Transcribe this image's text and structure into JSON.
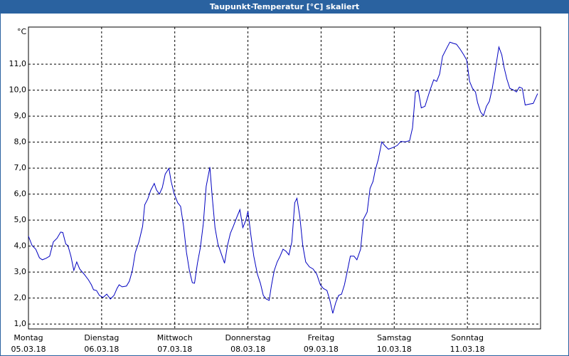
{
  "chart_data": {
    "type": "line",
    "title": "Taupunkt-Temperatur [°C] skaliert",
    "ylabel": "°C",
    "xlim": [
      0,
      7
    ],
    "ylim": [
      0.81,
      12.43
    ],
    "xticks": [
      {
        "value": 0,
        "label": "Montag"
      },
      {
        "value": 1,
        "label": "Dienstag"
      },
      {
        "value": 2,
        "label": "Mittwoch"
      },
      {
        "value": 3,
        "label": "Donnerstag"
      },
      {
        "value": 4,
        "label": "Freitag"
      },
      {
        "value": 5,
        "label": "Samstag"
      },
      {
        "value": 6,
        "label": "Sonntag"
      }
    ],
    "xtick_dates": [
      "05.03.18",
      "06.03.18",
      "07.03.18",
      "08.03.18",
      "09.03.18",
      "10.03.18",
      "11.03.18"
    ],
    "yticks": [
      {
        "value": 1,
        "label": "1,0"
      },
      {
        "value": 2,
        "label": "2,0"
      },
      {
        "value": 3,
        "label": "3,0"
      },
      {
        "value": 4,
        "label": "4,0"
      },
      {
        "value": 5,
        "label": "5,0"
      },
      {
        "value": 6,
        "label": "6,0"
      },
      {
        "value": 7,
        "label": "7,0"
      },
      {
        "value": 8,
        "label": "8,0"
      },
      {
        "value": 9,
        "label": "9,0"
      },
      {
        "value": 10,
        "label": "10,0"
      },
      {
        "value": 11,
        "label": "11,0"
      }
    ],
    "grid": true,
    "series": [
      {
        "color": "#0000c0",
        "x": [
          0.0,
          0.05,
          0.1,
          0.15,
          0.19,
          0.24,
          0.29,
          0.34,
          0.39,
          0.44,
          0.47,
          0.51,
          0.54,
          0.58,
          0.62,
          0.66,
          0.7,
          0.76,
          0.82,
          0.86,
          0.89,
          0.93,
          0.97,
          1.02,
          1.07,
          1.12,
          1.17,
          1.21,
          1.24,
          1.28,
          1.34,
          1.38,
          1.42,
          1.46,
          1.51,
          1.56,
          1.59,
          1.63,
          1.67,
          1.72,
          1.75,
          1.79,
          1.83,
          1.87,
          1.92,
          1.95,
          1.99,
          2.04,
          2.08,
          2.12,
          2.16,
          2.2,
          2.24,
          2.27,
          2.31,
          2.35,
          2.39,
          2.43,
          2.48,
          2.51,
          2.55,
          2.59,
          2.62,
          2.68,
          2.72,
          2.76,
          2.8,
          2.85,
          2.89,
          2.93,
          2.97,
          3.0,
          3.04,
          3.08,
          3.13,
          3.17,
          3.21,
          3.25,
          3.29,
          3.32,
          3.36,
          3.4,
          3.44,
          3.48,
          3.52,
          3.56,
          3.6,
          3.64,
          3.67,
          3.71,
          3.75,
          3.79,
          3.84,
          3.89,
          3.94,
          3.99,
          4.03,
          4.08,
          4.12,
          4.16,
          4.2,
          4.24,
          4.28,
          4.32,
          4.36,
          4.4,
          4.45,
          4.49,
          4.54,
          4.58,
          4.63,
          4.67,
          4.71,
          4.74,
          4.78,
          4.83,
          4.87,
          4.92,
          4.98,
          5.04,
          5.09,
          5.15,
          5.21,
          5.25,
          5.29,
          5.33,
          5.37,
          5.42,
          5.45,
          5.49,
          5.54,
          5.58,
          5.62,
          5.66,
          5.72,
          5.76,
          5.81,
          5.85,
          5.9,
          5.95,
          5.99,
          6.03,
          6.07,
          6.11,
          6.14,
          6.18,
          6.22,
          6.26,
          6.3,
          6.34,
          6.38,
          6.43,
          6.47,
          6.5,
          6.54,
          6.58,
          6.63,
          6.67,
          6.71,
          6.75,
          6.79,
          6.84,
          6.9,
          6.96
        ],
        "values": [
          4.38,
          4.02,
          3.88,
          3.55,
          3.47,
          3.53,
          3.61,
          4.16,
          4.3,
          4.54,
          4.52,
          4.08,
          4.02,
          3.61,
          3.06,
          3.39,
          3.12,
          2.92,
          2.7,
          2.51,
          2.32,
          2.29,
          2.1,
          2.02,
          2.15,
          1.96,
          2.1,
          2.37,
          2.51,
          2.43,
          2.46,
          2.65,
          3.06,
          3.75,
          4.16,
          4.76,
          5.59,
          5.81,
          6.14,
          6.41,
          6.16,
          6.0,
          6.25,
          6.77,
          6.99,
          6.49,
          6.03,
          5.67,
          5.53,
          4.76,
          3.75,
          3.06,
          2.59,
          2.57,
          3.34,
          3.94,
          4.85,
          6.3,
          7.04,
          5.95,
          4.71,
          4.08,
          3.83,
          3.34,
          4.02,
          4.49,
          4.76,
          5.12,
          5.4,
          4.71,
          4.98,
          5.34,
          4.43,
          3.61,
          2.92,
          2.57,
          2.1,
          1.96,
          1.91,
          2.46,
          3.06,
          3.39,
          3.61,
          3.88,
          3.8,
          3.66,
          4.16,
          5.67,
          5.84,
          5.12,
          4.02,
          3.39,
          3.2,
          3.12,
          2.92,
          2.51,
          2.37,
          2.29,
          1.91,
          1.41,
          1.82,
          2.1,
          2.15,
          2.51,
          3.06,
          3.61,
          3.61,
          3.47,
          3.88,
          5.04,
          5.31,
          6.22,
          6.49,
          6.91,
          7.32,
          8.01,
          7.87,
          7.73,
          7.79,
          7.87,
          8.03,
          8.01,
          8.06,
          8.55,
          9.93,
          9.98,
          9.32,
          9.38,
          9.65,
          10.01,
          10.4,
          10.34,
          10.62,
          11.3,
          11.63,
          11.85,
          11.8,
          11.77,
          11.58,
          11.36,
          11.16,
          10.34,
          10.07,
          9.93,
          9.52,
          9.16,
          9.02,
          9.38,
          9.57,
          10.07,
          10.75,
          11.66,
          11.36,
          10.89,
          10.42,
          10.07,
          10.01,
          9.93,
          10.12,
          10.07,
          9.43,
          9.46,
          9.49,
          9.87
        ]
      }
    ]
  }
}
